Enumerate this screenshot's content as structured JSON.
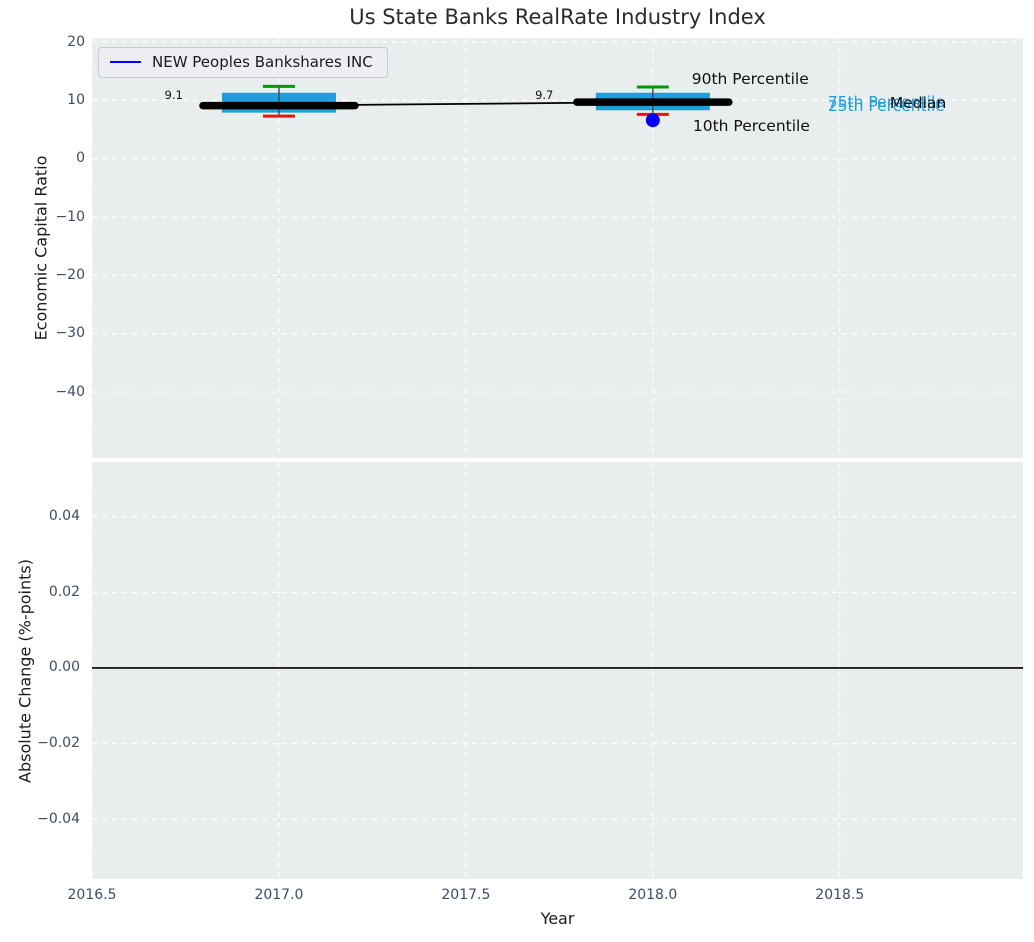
{
  "title": "Us State Banks RealRate Industry Index",
  "legend": {
    "label": "NEW Peoples Bankshares INC"
  },
  "x_axis": {
    "label": "Year",
    "ticks": [
      {
        "v": 2016.5,
        "label": "2016.5"
      },
      {
        "v": 2017.0,
        "label": "2017.0"
      },
      {
        "v": 2017.5,
        "label": "2017.5"
      },
      {
        "v": 2018.0,
        "label": "2018.0"
      },
      {
        "v": 2018.5,
        "label": "2018.5"
      }
    ]
  },
  "colors": {
    "panel_bg": "#e9edee",
    "grid": "#ffffff",
    "box_fill": "#1f9fd8",
    "p90_cap": "#009a00",
    "p10_cap": "#ee1111",
    "whisker": "#444444",
    "median_line": "#000000",
    "company_blue": "#0000ff",
    "tick_label": "#3f4c63",
    "axis_label": "#1b1b1b",
    "annotation_black": "#101010",
    "annotation_cyan": "#1f9fd8",
    "zero_line": "#000000"
  },
  "chart_data": [
    {
      "type": "boxplot",
      "title": "Us State Banks RealRate Industry Index",
      "ylabel": "Economic Capital Ratio",
      "xlabel": "Year",
      "xlim": [
        2016.5,
        2018.99
      ],
      "ylim": [
        -51.3,
        20.69
      ],
      "grid": "white dashed, on",
      "legend_position": "upper left",
      "yticks": [
        {
          "v": 20,
          "label": "20"
        },
        {
          "v": 10,
          "label": "10"
        },
        {
          "v": 0,
          "label": "0"
        },
        {
          "v": -10,
          "label": "−10"
        },
        {
          "v": -20,
          "label": "−20"
        },
        {
          "v": -30,
          "label": "−30"
        },
        {
          "v": -40,
          "label": "−40"
        }
      ],
      "boxes": [
        {
          "year": 2017,
          "p10": 7.3,
          "p25": 7.9,
          "median": 9.1,
          "p75": 11.3,
          "p90": 12.4
        },
        {
          "year": 2018,
          "p10": 7.6,
          "p25": 8.3,
          "median": 9.7,
          "p75": 11.3,
          "p90": 12.3
        }
      ],
      "median_series": {
        "x": [
          2017,
          2018
        ],
        "y": [
          9.1,
          9.7
        ]
      },
      "company_series": {
        "name": "NEW Peoples Bankshares INC",
        "points": [
          {
            "year": 2018,
            "value": 6.6
          }
        ]
      },
      "annotations": [
        {
          "text": "9.1",
          "x": 2016.743,
          "y": 10.2,
          "anchor": "end",
          "style": "value"
        },
        {
          "text": "9.7",
          "x": 2017.685,
          "y": 10.25,
          "anchor": "start",
          "style": "value"
        },
        {
          "text": "90th Percentile",
          "x": 2018.104,
          "y": 12.8,
          "anchor": "start",
          "style": "big"
        },
        {
          "text": "10th Percentile",
          "x": 2018.107,
          "y": 4.75,
          "anchor": "start",
          "style": "big"
        },
        {
          "text": "75th Percentile",
          "x": 2018.468,
          "y": 8.86,
          "anchor": "start",
          "style": "cyan"
        },
        {
          "text": "25th Percentile",
          "x": 2018.468,
          "y": 8.17,
          "anchor": "start",
          "style": "cyan"
        },
        {
          "text": "Median",
          "x": 2018.634,
          "y": 8.69,
          "anchor": "start",
          "style": "big"
        }
      ]
    },
    {
      "type": "line",
      "ylabel": "Absolute Change (%-points)",
      "xlim": [
        2016.5,
        2018.99
      ],
      "ylim": [
        -0.0558,
        0.05447
      ],
      "grid": "white dashed, on",
      "yticks": [
        {
          "v": 0.04,
          "label": "0.04"
        },
        {
          "v": 0.02,
          "label": "0.02"
        },
        {
          "v": 0.0,
          "label": "0.00"
        },
        {
          "v": -0.02,
          "label": "−0.02"
        },
        {
          "v": -0.04,
          "label": "−0.04"
        }
      ],
      "zero_line": 0.0,
      "series": []
    }
  ]
}
